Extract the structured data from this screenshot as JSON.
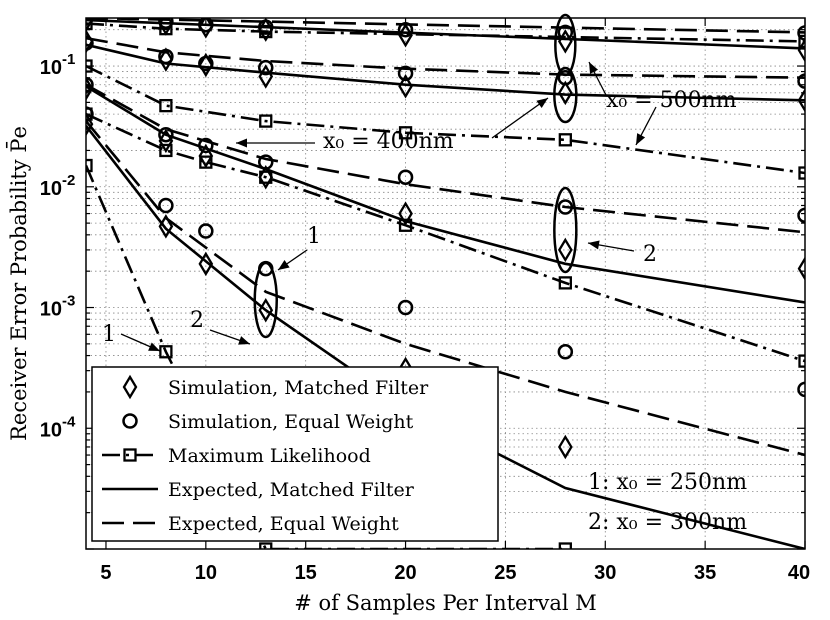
{
  "chart_data": {
    "type": "line",
    "title": "",
    "xlabel": "# of Samples Per Interval M",
    "ylabel": "Receiver Error Probability P̄e",
    "xlim": [
      4,
      40
    ],
    "ylim": [
      1e-05,
      0.25
    ],
    "yscale": "log",
    "grid": true,
    "x_ticks": [
      "5",
      "10",
      "15",
      "20",
      "25",
      "30",
      "35",
      "40"
    ],
    "y_ticks": [
      {
        "label": "10",
        "exp": "-1",
        "value": 0.1
      },
      {
        "label": "10",
        "exp": "-2",
        "value": 0.01
      },
      {
        "label": "10",
        "exp": "-3",
        "value": 0.001
      },
      {
        "label": "10",
        "exp": "-4",
        "value": 0.0001
      }
    ],
    "legend": {
      "position": "bottom-left",
      "entries": [
        {
          "label": "Simulation, Matched Filter",
          "style": "diamond"
        },
        {
          "label": "Simulation, Equal Weight",
          "style": "circle"
        },
        {
          "label": "Maximum Likelihood",
          "style": "dashdot-square"
        },
        {
          "label": "Expected, Matched Filter",
          "style": "solid"
        },
        {
          "label": "Expected, Equal Weight",
          "style": "dashed"
        }
      ]
    },
    "annotations": [
      {
        "text": "x₀ = 500nm"
      },
      {
        "text": "x₀ = 400nm"
      },
      {
        "text": "1"
      },
      {
        "text": "2"
      },
      {
        "text": "1"
      },
      {
        "text": "2"
      },
      {
        "text": "1:  x₀ = 250nm"
      },
      {
        "text": "2:  x₀ = 300nm"
      }
    ],
    "series": [
      {
        "group": "x0=500nm",
        "kind": "expected_mf",
        "x": [
          4,
          40
        ],
        "y": [
          0.24,
          0.14
        ]
      },
      {
        "group": "x0=500nm",
        "kind": "expected_ew",
        "x": [
          4,
          40
        ],
        "y": [
          0.25,
          0.19
        ]
      },
      {
        "group": "x0=500nm",
        "kind": "ml",
        "x": [
          4,
          8,
          13,
          40
        ],
        "y": [
          0.225,
          0.204,
          0.193,
          0.16
        ]
      },
      {
        "group": "x0=500nm",
        "kind": "sim_mf",
        "x": [
          4,
          8,
          10,
          13,
          20,
          28,
          40
        ],
        "y": [
          0.24,
          0.225,
          0.213,
          0.2,
          0.18,
          0.16,
          0.135
        ]
      },
      {
        "group": "x0=500nm",
        "kind": "sim_ew",
        "x": [
          4,
          8,
          10,
          13,
          20,
          28,
          40
        ],
        "y": [
          0.25,
          0.235,
          0.22,
          0.21,
          0.2,
          0.19,
          0.188
        ]
      },
      {
        "group": "x0=400nm",
        "kind": "expected_mf",
        "x": [
          4,
          8,
          13,
          20,
          28,
          40
        ],
        "y": [
          0.15,
          0.105,
          0.088,
          0.07,
          0.058,
          0.052
        ]
      },
      {
        "group": "x0=400nm",
        "kind": "expected_ew",
        "x": [
          4,
          8,
          13,
          20,
          28,
          40
        ],
        "y": [
          0.17,
          0.13,
          0.11,
          0.095,
          0.085,
          0.08
        ]
      },
      {
        "group": "x0=400nm",
        "kind": "ml",
        "x": [
          4,
          8,
          13,
          20,
          28,
          40
        ],
        "y": [
          0.1,
          0.047,
          0.035,
          0.028,
          0.0245,
          0.013
        ]
      },
      {
        "group": "x0=400nm",
        "kind": "sim_mf",
        "x": [
          4,
          8,
          10,
          13,
          20,
          28,
          40
        ],
        "y": [
          0.16,
          0.113,
          0.102,
          0.082,
          0.068,
          0.06,
          0.052
        ]
      },
      {
        "group": "x0=400nm",
        "kind": "sim_ew",
        "x": [
          4,
          8,
          10,
          13,
          20,
          28,
          40
        ],
        "y": [
          0.155,
          0.12,
          0.105,
          0.097,
          0.087,
          0.08,
          0.075
        ]
      },
      {
        "group": "x0=300nm",
        "kind": "expected_mf",
        "x": [
          4,
          8,
          13,
          20,
          28,
          40
        ],
        "y": [
          0.068,
          0.027,
          0.014,
          0.0052,
          0.0023,
          0.0011
        ]
      },
      {
        "group": "x0=300nm",
        "kind": "expected_ew",
        "x": [
          4,
          8,
          13,
          20,
          28,
          40
        ],
        "y": [
          0.07,
          0.03,
          0.017,
          0.0105,
          0.0068,
          0.0042
        ]
      },
      {
        "group": "x0=300nm",
        "kind": "ml",
        "x": [
          4,
          8,
          10,
          13,
          20,
          28,
          40
        ],
        "y": [
          0.04,
          0.02,
          0.016,
          0.012,
          0.0048,
          0.0016,
          0.00036
        ]
      },
      {
        "group": "x0=300nm",
        "kind": "sim_mf",
        "x": [
          4,
          8,
          10,
          13,
          20,
          28,
          40
        ],
        "y": [
          0.065,
          0.024,
          0.018,
          0.012,
          0.006,
          0.003,
          0.0021
        ]
      },
      {
        "group": "x0=300nm",
        "kind": "sim_ew",
        "x": [
          4,
          8,
          10,
          13,
          20,
          28,
          40
        ],
        "y": [
          0.07,
          0.027,
          0.022,
          0.016,
          0.012,
          0.0068,
          0.0058
        ]
      },
      {
        "group": "x0=250nm",
        "kind": "expected_mf",
        "x": [
          4,
          8,
          13,
          20,
          28,
          40
        ],
        "y": [
          0.032,
          0.0045,
          0.00095,
          0.00015,
          3.2e-05,
          5e-06
        ]
      },
      {
        "group": "x0=250nm",
        "kind": "expected_ew",
        "x": [
          4,
          8,
          13,
          20,
          28,
          40
        ],
        "y": [
          0.035,
          0.0055,
          0.00135,
          0.0005,
          0.0002,
          6e-05
        ]
      },
      {
        "group": "x0=250nm",
        "kind": "ml",
        "x": [
          4,
          8,
          13,
          28
        ],
        "y": [
          0.015,
          0.00043,
          1e-05,
          1e-05
        ]
      },
      {
        "group": "x0=250nm",
        "kind": "sim_mf",
        "x": [
          4,
          8,
          10,
          13,
          20,
          28
        ],
        "y": [
          0.033,
          0.0047,
          0.0023,
          0.00095,
          0.00031,
          7e-05
        ]
      },
      {
        "group": "x0=250nm",
        "kind": "sim_ew",
        "x": [
          4,
          8,
          10,
          13,
          20,
          28,
          40
        ],
        "y": [
          0.04,
          0.007,
          0.0043,
          0.0021,
          0.001,
          0.00043,
          0.00021
        ]
      }
    ]
  }
}
